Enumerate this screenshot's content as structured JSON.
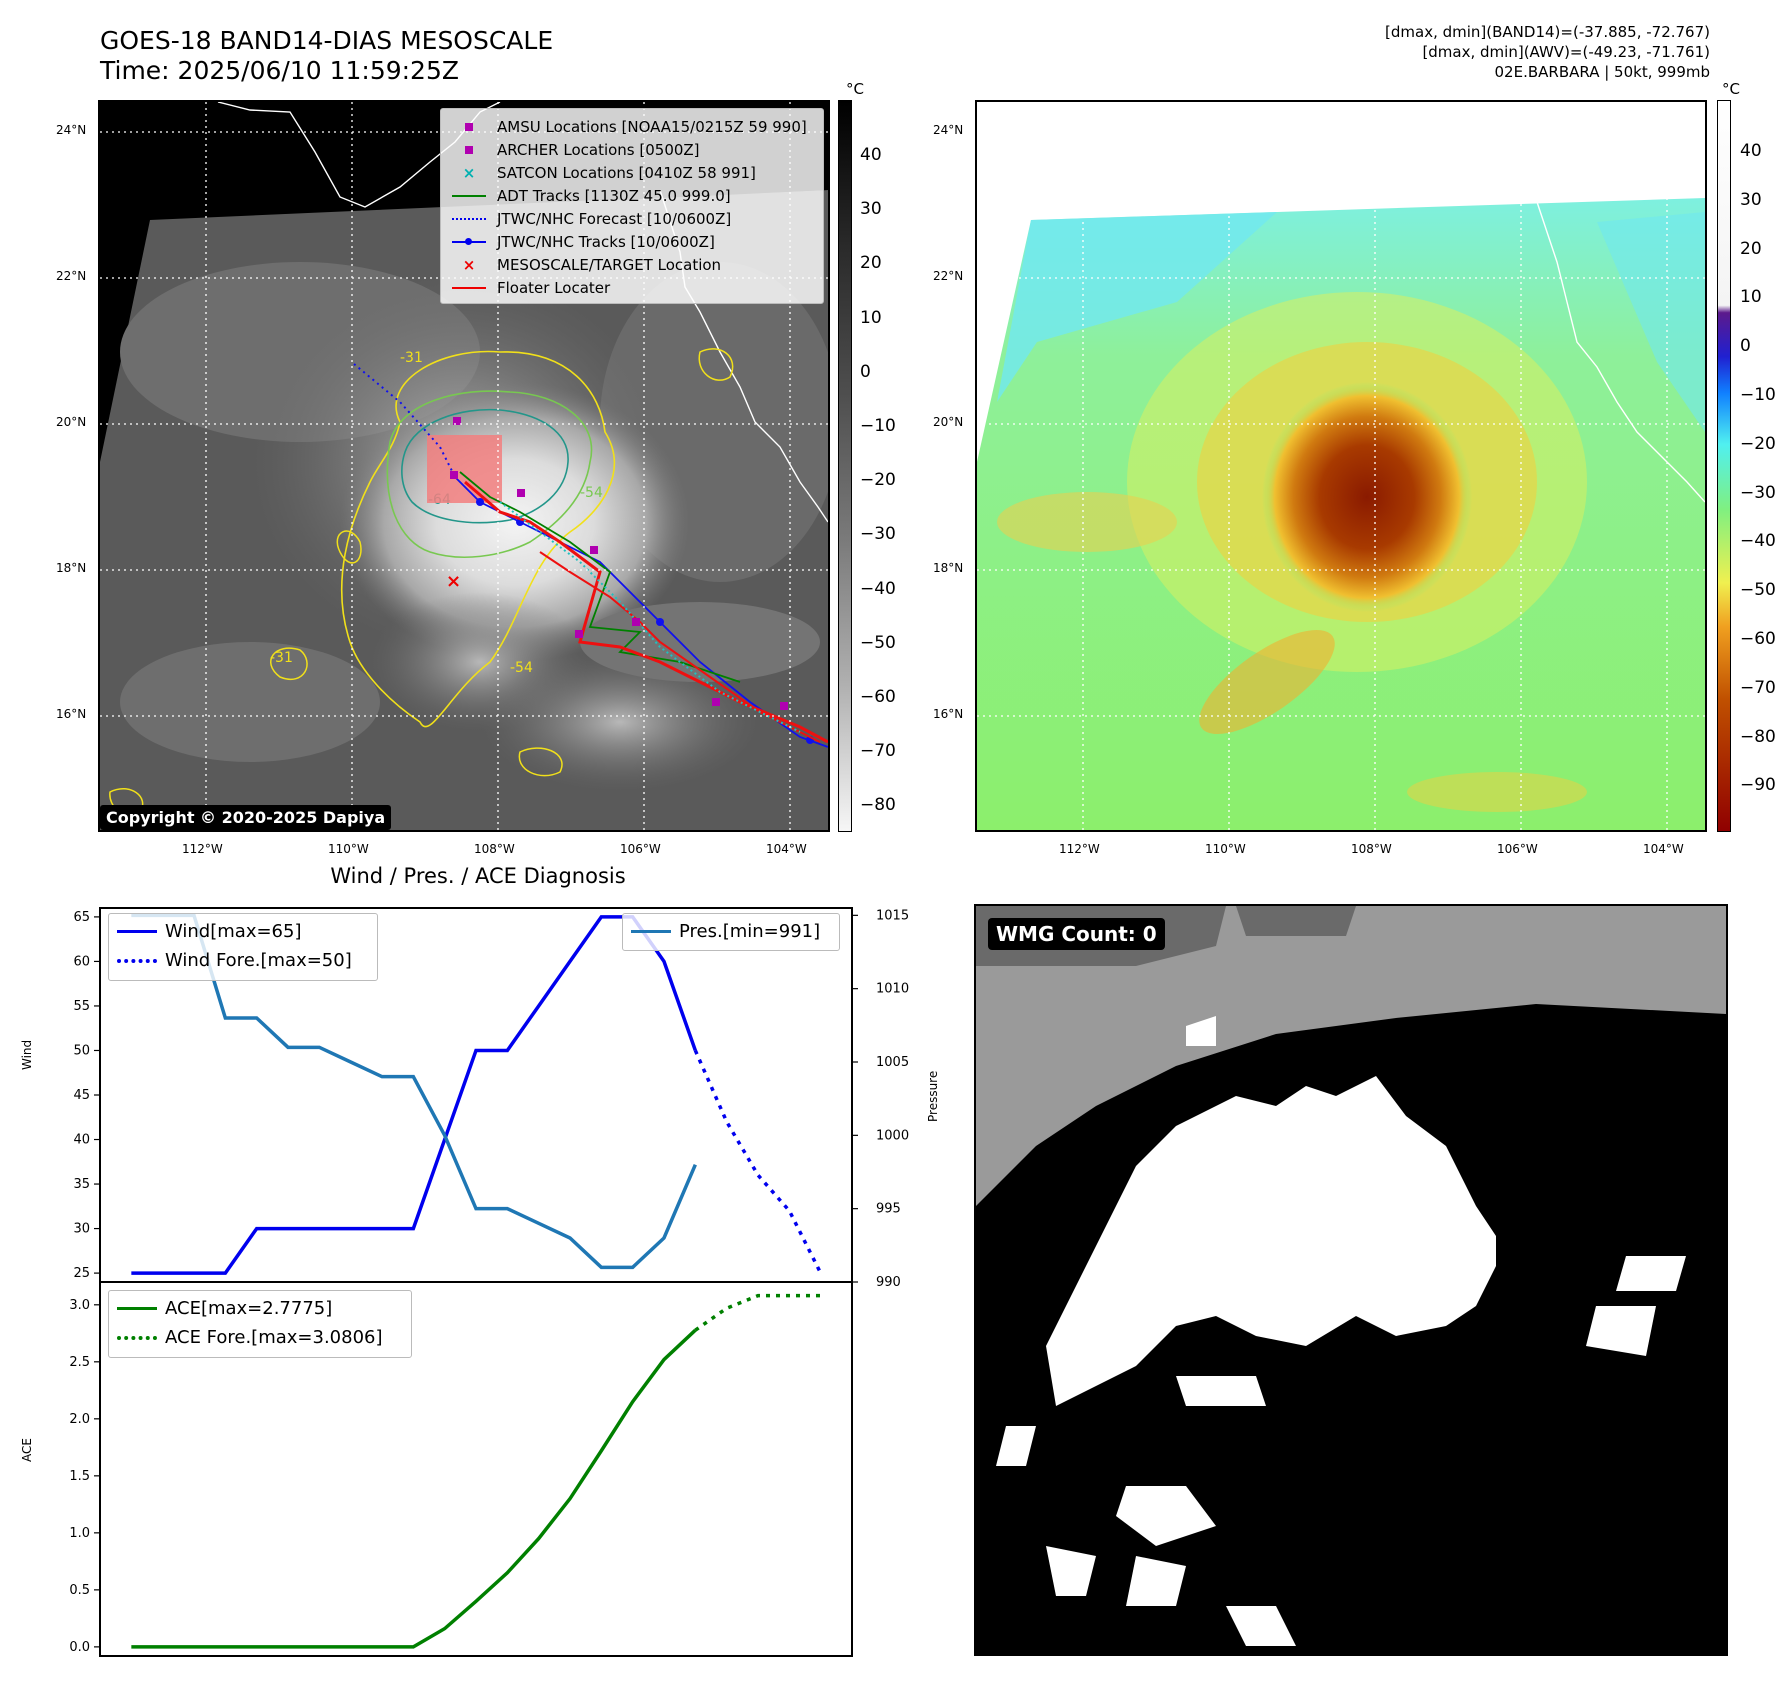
{
  "header": {
    "title_line1": "GOES-18 BAND14-DIAS MESOSCALE",
    "title_line2": "Time: 2025/06/10 11:59:25Z",
    "right_line1": "[dmax, dmin](BAND14)=(-37.885, -72.767)",
    "right_line2": "[dmax, dmin](AWV)=(-49.23, -71.761)",
    "right_line3": "02E.BARBARA | 50kt, 999mb"
  },
  "map": {
    "lat_ticks": [
      "24°N",
      "22°N",
      "20°N",
      "18°N",
      "16°N"
    ],
    "lon_ticks": [
      "112°W",
      "110°W",
      "108°W",
      "106°W",
      "104°W"
    ],
    "unit": "°C",
    "cbar_left_ticks": [
      "40",
      "30",
      "20",
      "10",
      "0",
      "−10",
      "−20",
      "−30",
      "−40",
      "−50",
      "−60",
      "−70",
      "−80"
    ],
    "cbar_right_ticks": [
      "40",
      "30",
      "20",
      "10",
      "0",
      "−10",
      "−20",
      "−30",
      "−40",
      "−50",
      "−60",
      "−70",
      "−80",
      "−90"
    ],
    "contour_labels": [
      "-31",
      "-54",
      "-64",
      "-54",
      "-31"
    ],
    "copyright": "Copyright © 2020-2025 Dapiya",
    "legend": [
      {
        "label": "AMSU Locations [NOAA15/0215Z 59 990]",
        "color": "#b000b0",
        "sym": "square"
      },
      {
        "label": "ARCHER Locations [0500Z]",
        "color": "#b000b0",
        "sym": "square"
      },
      {
        "label": "SATCON Locations [0410Z 58 991]",
        "color": "#00b0b0",
        "sym": "x"
      },
      {
        "label": "ADT Tracks [1130Z 45.0 999.0]",
        "color": "#008000",
        "sym": "line"
      },
      {
        "label": "JTWC/NHC Forecast [10/0600Z]",
        "color": "#0000ee",
        "sym": "dotted"
      },
      {
        "label": "JTWC/NHC Tracks [10/0600Z]",
        "color": "#0000ee",
        "sym": "line-dot"
      },
      {
        "label": "MESOSCALE/TARGET Location",
        "color": "#ee0000",
        "sym": "x"
      },
      {
        "label": "Floater Locater",
        "color": "#ee0000",
        "sym": "line"
      }
    ]
  },
  "diag": {
    "title": "Wind / Pres. / ACE Diagnosis",
    "wind_ylabel": "Wind",
    "pres_ylabel": "Pressure",
    "ace_ylabel": "ACE",
    "legend_wind": "Wind[max=65]",
    "legend_wind_fore": "Wind Fore.[max=50]",
    "legend_pres": "Pres.[min=991]",
    "legend_ace": "ACE[max=2.7775]",
    "legend_ace_fore": "ACE Fore.[max=3.0806]"
  },
  "wmg": {
    "label": "WMG Count: 0"
  },
  "chart_data": [
    {
      "type": "line",
      "name": "wind_pressure",
      "x_index": [
        0,
        1,
        2,
        3,
        4,
        5,
        6,
        7,
        8,
        9,
        10,
        11,
        12,
        13,
        14,
        15,
        16,
        17,
        18,
        19
      ],
      "series": [
        {
          "name": "Wind[max=65]",
          "axis": "left",
          "color": "#0000ee",
          "style": "solid",
          "x": [
            0,
            1,
            2,
            3,
            4,
            5,
            6,
            7,
            8,
            9,
            10,
            11,
            12,
            13,
            14,
            15,
            16,
            17,
            18
          ],
          "values": [
            25,
            25,
            25,
            25,
            30,
            30,
            30,
            30,
            30,
            30,
            40,
            50,
            50,
            55,
            60,
            65,
            65,
            60,
            50
          ]
        },
        {
          "name": "Wind Fore.[max=50]",
          "axis": "left",
          "color": "#0000ee",
          "style": "dotted",
          "x": [
            18,
            19,
            20,
            21,
            22
          ],
          "values": [
            50,
            42,
            36,
            32,
            25
          ]
        },
        {
          "name": "Pres.[min=991]",
          "axis": "right",
          "color": "#1f77b4",
          "style": "solid",
          "x": [
            0,
            1,
            2,
            3,
            4,
            5,
            6,
            7,
            8,
            9,
            10,
            11,
            12,
            13,
            14,
            15,
            16,
            17,
            18
          ],
          "values": [
            1015,
            1015,
            1015,
            1008,
            1008,
            1006,
            1006,
            1005,
            1004,
            1004,
            1000,
            995,
            995,
            994,
            993,
            991,
            991,
            993,
            998
          ]
        }
      ],
      "ylim_left": [
        24,
        66
      ],
      "yticks_left": [
        25,
        30,
        35,
        40,
        45,
        50,
        55,
        60,
        65
      ],
      "ylim_right": [
        990,
        1015.5
      ],
      "yticks_right": [
        990,
        995,
        1000,
        1005,
        1010,
        1015
      ]
    },
    {
      "type": "line",
      "name": "ace",
      "series": [
        {
          "name": "ACE[max=2.7775]",
          "color": "#008000",
          "style": "solid",
          "x": [
            0,
            1,
            2,
            3,
            4,
            5,
            6,
            7,
            8,
            9,
            10,
            11,
            12,
            13,
            14,
            15,
            16,
            17,
            18
          ],
          "values": [
            0,
            0,
            0,
            0,
            0,
            0,
            0,
            0,
            0,
            0,
            0.16,
            0.4,
            0.65,
            0.95,
            1.3,
            1.72,
            2.15,
            2.52,
            2.7775
          ]
        },
        {
          "name": "ACE Fore.[max=3.0806]",
          "color": "#008000",
          "style": "dotted",
          "x": [
            18,
            19,
            20,
            21,
            22
          ],
          "values": [
            2.7775,
            2.97,
            3.08,
            3.08,
            3.08
          ]
        }
      ],
      "ylim": [
        -0.08,
        3.2
      ],
      "yticks": [
        0.0,
        0.5,
        1.0,
        1.5,
        2.0,
        2.5,
        3.0
      ],
      "ytick_labels": [
        "0.0",
        "0.5",
        "1.0",
        "1.5",
        "2.0",
        "2.5",
        "3.0"
      ]
    }
  ]
}
